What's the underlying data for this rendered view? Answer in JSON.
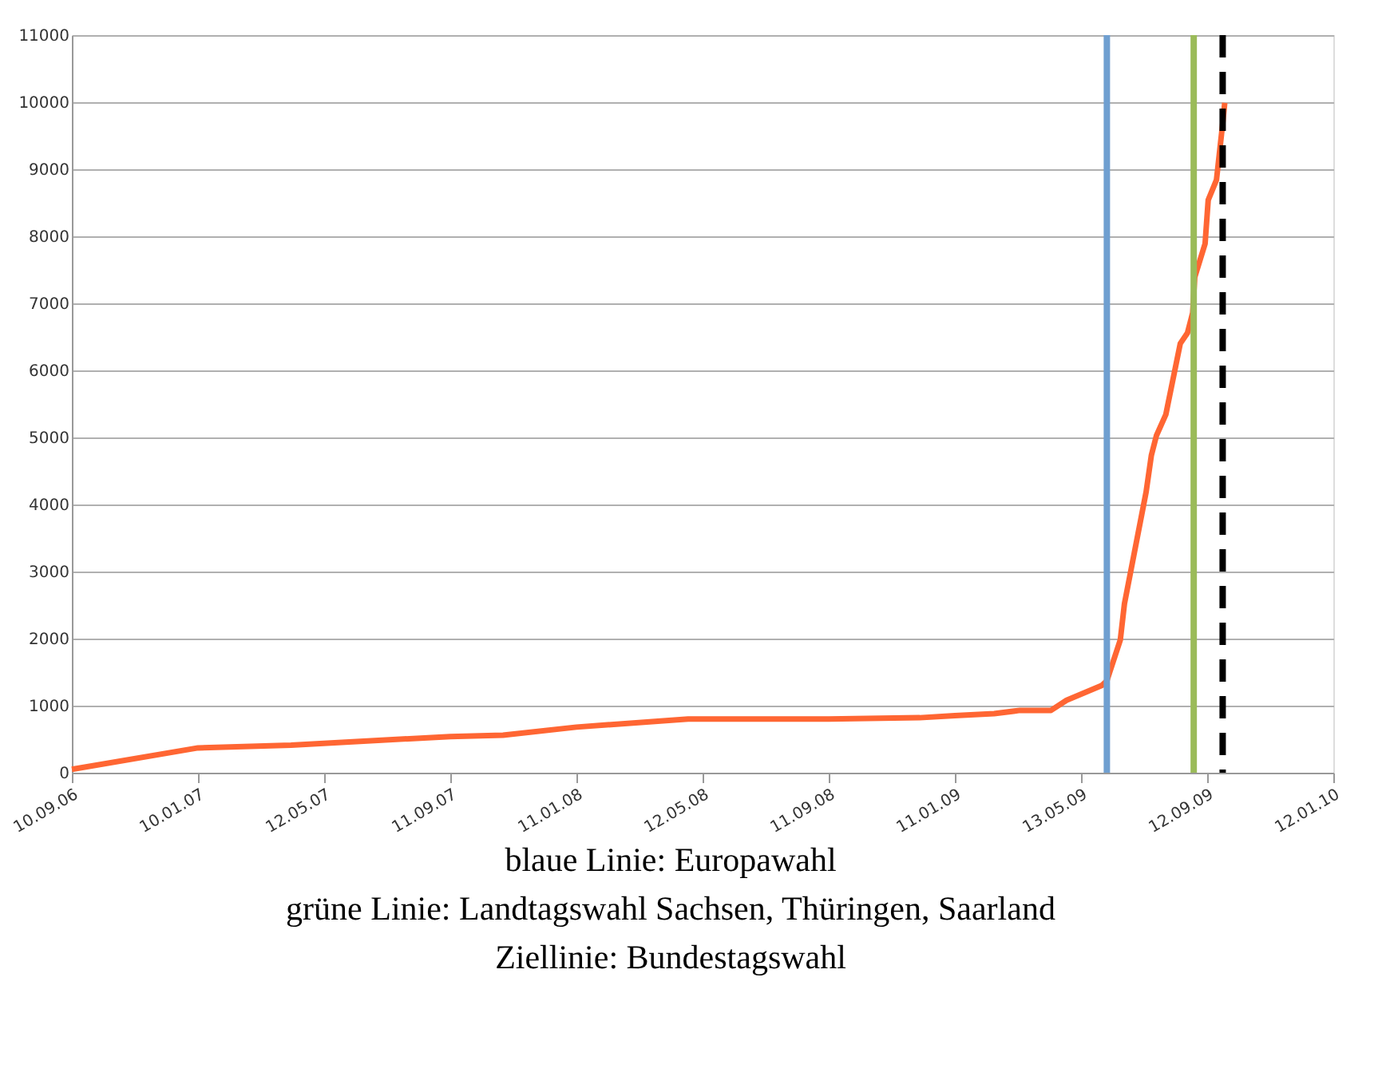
{
  "chart_data": {
    "type": "line",
    "x": [
      "2006-09-10",
      "2007-01-10",
      "2007-04-10",
      "2007-09-11",
      "2007-11-01",
      "2008-01-11",
      "2008-04-28",
      "2008-09-11",
      "2008-12-08",
      "2009-01-11",
      "2009-02-18",
      "2009-03-15",
      "2009-04-14",
      "2009-04-29",
      "2009-06-02",
      "2009-06-07",
      "2009-06-20",
      "2009-06-24",
      "2009-07-15",
      "2009-07-20",
      "2009-07-25",
      "2009-08-03",
      "2009-08-17",
      "2009-08-24",
      "2009-08-29",
      "2009-08-31",
      "2009-09-10",
      "2009-09-13",
      "2009-09-21",
      "2009-09-27",
      "2009-09-29"
    ],
    "series": [
      {
        "color": "#ff6633",
        "values": [
          50,
          370,
          410,
          540,
          560,
          680,
          800,
          800,
          820,
          850,
          880,
          930,
          930,
          1080,
          1300,
          1370,
          1980,
          2520,
          4190,
          4730,
          5030,
          5340,
          6400,
          6560,
          6860,
          7390,
          7890,
          8540,
          8840,
          9680,
          9990
        ]
      }
    ],
    "xlim": [
      "2006-09-10",
      "2010-01-12"
    ],
    "xticks": [
      {
        "value": "2006-09-10",
        "label": "10.09.06"
      },
      {
        "value": "2007-01-10",
        "label": "10.01.07"
      },
      {
        "value": "2007-05-12",
        "label": "12.05.07"
      },
      {
        "value": "2007-09-11",
        "label": "11.09.07"
      },
      {
        "value": "2008-01-11",
        "label": "11.01.08"
      },
      {
        "value": "2008-05-12",
        "label": "12.05.08"
      },
      {
        "value": "2008-09-11",
        "label": "11.09.08"
      },
      {
        "value": "2009-01-11",
        "label": "11.01.09"
      },
      {
        "value": "2009-05-13",
        "label": "13.05.09"
      },
      {
        "value": "2009-09-12",
        "label": "12.09.09"
      },
      {
        "value": "2010-01-12",
        "label": "12.01.10"
      }
    ],
    "ylim": [
      0,
      11000
    ],
    "yticks": [
      0,
      1000,
      2000,
      3000,
      4000,
      5000,
      6000,
      7000,
      8000,
      9000,
      10000,
      11000
    ],
    "grid": "y",
    "line_style": "solid",
    "ref_lines": [
      {
        "axis": "x",
        "value": "2009-06-07",
        "color": "#6f9fd0",
        "line_style": "solid"
      },
      {
        "axis": "x",
        "value": "2009-08-30",
        "color": "#9bbb59",
        "line_style": "solid"
      },
      {
        "axis": "x",
        "value": "2009-09-27",
        "color": "#000000",
        "line_style": "dashed"
      }
    ],
    "annotations": [
      "blaue Linie: Europawahl",
      "grüne Linie: Landtagswahl Sachsen, Thüringen, Saarland",
      "Ziellinie: Bundestagswahl"
    ]
  }
}
